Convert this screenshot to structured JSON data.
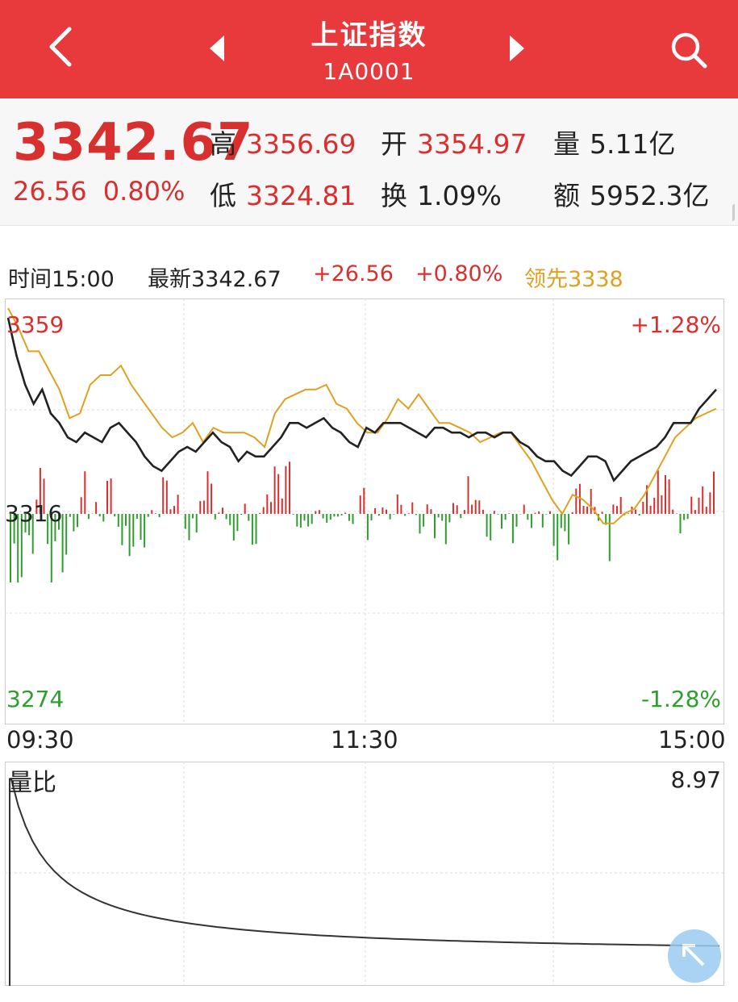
{
  "header": {
    "title": "上证指数",
    "code": "1A0001",
    "icons": [
      "back-arrow-icon",
      "prev-stock-icon",
      "next-stock-icon",
      "search-icon"
    ]
  },
  "quote": {
    "price": "3342.67",
    "change": "26.56",
    "change_pct": "0.80%",
    "high_label": "高",
    "high": "3356.69",
    "low_label": "低",
    "low": "3324.81",
    "open_label": "开",
    "open": "3354.97",
    "turnover_label": "换",
    "turnover": "1.09%",
    "volume_label": "量",
    "volume": "5.11亿",
    "amount_label": "额",
    "amount": "5952.3亿"
  },
  "info_line": {
    "time": "时间15:00",
    "latest": "最新3342.67",
    "change": "+26.56",
    "change_pct": "+0.80%",
    "leader": "领先3338"
  },
  "price_chart": {
    "y_top": "3359",
    "y_mid": "3316",
    "y_bottom": "3274",
    "pct_top": "+1.28%",
    "pct_bottom": "-1.28%"
  },
  "time_axis": {
    "start": "09:30",
    "mid": "11:30",
    "end": "15:00"
  },
  "volume_chart": {
    "label": "量比",
    "max": "8.97"
  },
  "colors": {
    "header": "#e8393d",
    "up": "#d8302f",
    "down": "#2e9e2e",
    "leader": "#e0a020",
    "line": "#222222"
  },
  "chart_data": {
    "type": "line",
    "ylim": [
      3274,
      3359
    ],
    "base": 3316,
    "series": [
      {
        "values": [
          3357,
          3349,
          3343,
          3339,
          3342,
          3337,
          3335,
          3332,
          3331,
          3333,
          3332,
          3331,
          3334,
          3335,
          3333,
          3331,
          3328,
          3326,
          3325,
          3327,
          3329,
          3330,
          3329,
          3331,
          3333,
          3331,
          3330,
          3327,
          3329,
          3328,
          3328,
          3330,
          3332,
          3335,
          3335,
          3334,
          3335,
          3336,
          3334,
          3333,
          3331,
          3330,
          3334,
          3333,
          3335,
          3335,
          3335,
          3334,
          3333,
          3332,
          3334,
          3334,
          3333,
          3333,
          3332,
          3333,
          3333,
          3332,
          3333,
          3333,
          3331,
          3330,
          3328,
          3327,
          3327,
          3325,
          3324,
          3326,
          3328,
          3328,
          3327,
          3323,
          3325,
          3327,
          3328,
          3329,
          3330,
          3332,
          3335,
          3335,
          3335,
          3338,
          3340,
          3342
        ]
      },
      {
        "name": "领先",
        "values": [
          3359,
          3355,
          3350,
          3350,
          3346,
          3342,
          3336,
          3337,
          3343,
          3345,
          3345,
          3347,
          3343,
          3340,
          3337,
          3334,
          3332,
          3333,
          3335,
          3331,
          3334,
          3333,
          3333,
          3333,
          3332,
          3330,
          3337,
          3340,
          3341,
          3342,
          3342,
          3343,
          3339,
          3338,
          3335,
          3333,
          3333,
          3336,
          3340,
          3338,
          3341,
          3338,
          3335,
          3335,
          3334,
          3333,
          3331,
          3332,
          3333,
          3333,
          3330,
          3327,
          3323,
          3319,
          3316,
          3320,
          3319,
          3317,
          3314,
          3314,
          3316,
          3317,
          3320,
          3324,
          3328,
          3332,
          3334,
          3336,
          3337,
          3338
        ]
      }
    ],
    "volume_ratio_max": 8.97
  }
}
